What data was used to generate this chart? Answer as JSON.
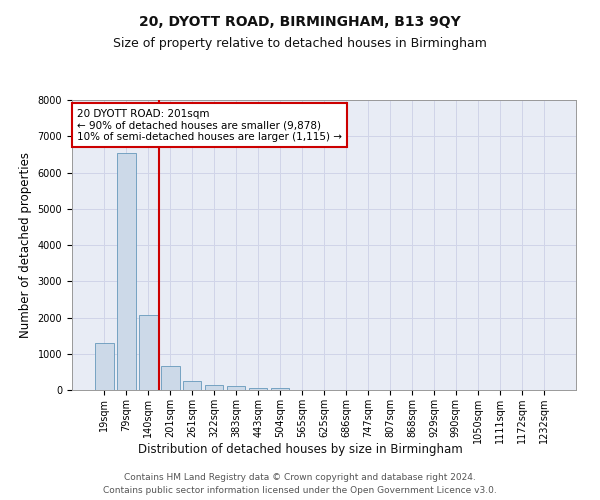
{
  "title": "20, DYOTT ROAD, BIRMINGHAM, B13 9QY",
  "subtitle": "Size of property relative to detached houses in Birmingham",
  "xlabel": "Distribution of detached houses by size in Birmingham",
  "ylabel": "Number of detached properties",
  "bar_color": "#ccd9e8",
  "bar_edge_color": "#6699bb",
  "grid_color": "#d0d4e8",
  "bg_color": "#e8ecf5",
  "fig_bg_color": "#ffffff",
  "annotation_line_color": "#cc0000",
  "categories": [
    "19sqm",
    "79sqm",
    "140sqm",
    "201sqm",
    "261sqm",
    "322sqm",
    "383sqm",
    "443sqm",
    "504sqm",
    "565sqm",
    "625sqm",
    "686sqm",
    "747sqm",
    "807sqm",
    "868sqm",
    "929sqm",
    "990sqm",
    "1050sqm",
    "1111sqm",
    "1172sqm",
    "1232sqm"
  ],
  "values": [
    1300,
    6550,
    2080,
    650,
    250,
    130,
    100,
    60,
    60,
    0,
    0,
    0,
    0,
    0,
    0,
    0,
    0,
    0,
    0,
    0,
    0
  ],
  "property_line_x": 3,
  "annotation_text_line1": "20 DYOTT ROAD: 201sqm",
  "annotation_text_line2": "← 90% of detached houses are smaller (9,878)",
  "annotation_text_line3": "10% of semi-detached houses are larger (1,115) →",
  "ylim": [
    0,
    8000
  ],
  "yticks": [
    0,
    1000,
    2000,
    3000,
    4000,
    5000,
    6000,
    7000,
    8000
  ],
  "footer_line1": "Contains HM Land Registry data © Crown copyright and database right 2024.",
  "footer_line2": "Contains public sector information licensed under the Open Government Licence v3.0.",
  "title_fontsize": 10,
  "subtitle_fontsize": 9,
  "label_fontsize": 8.5,
  "tick_fontsize": 7,
  "annotation_fontsize": 7.5,
  "footer_fontsize": 6.5
}
